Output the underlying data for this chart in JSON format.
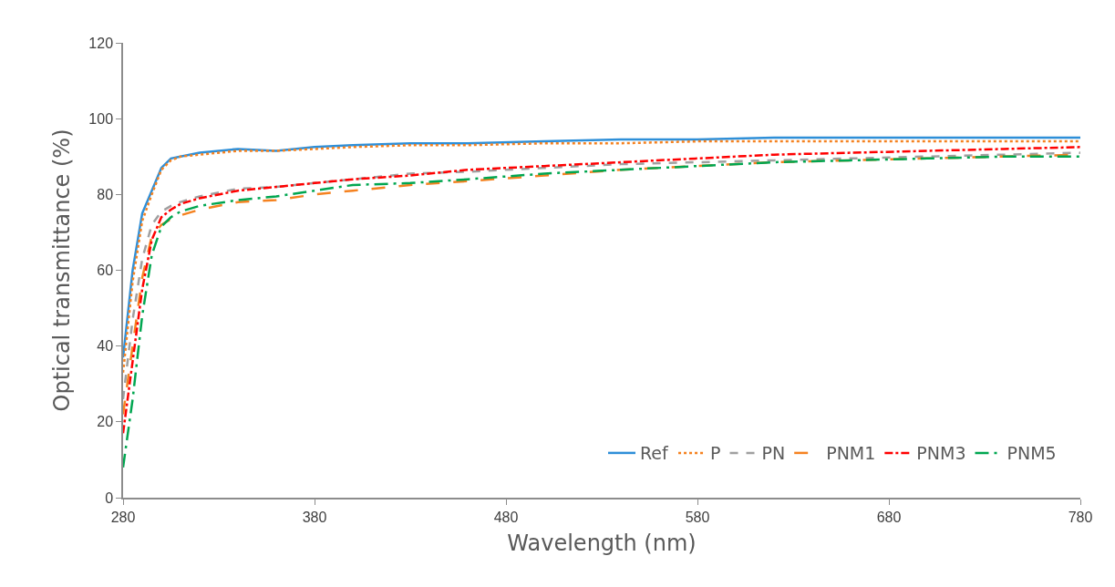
{
  "chart_data": {
    "type": "line",
    "xlabel": "Wavelength (nm)",
    "ylabel": "Optical transmittance (%)",
    "x": [
      280,
      285,
      290,
      295,
      300,
      305,
      310,
      320,
      340,
      360,
      380,
      400,
      430,
      460,
      500,
      540,
      580,
      620,
      660,
      700,
      740,
      780
    ],
    "xlim": [
      280,
      780
    ],
    "xticks": [
      280,
      380,
      480,
      580,
      680,
      780
    ],
    "ylim": [
      0,
      120
    ],
    "yticks": [
      0,
      20,
      40,
      60,
      80,
      100,
      120
    ],
    "grid": false,
    "legend": "bottom",
    "marker": "none",
    "series": [
      {
        "name": "Ref",
        "color": "#2e8fd8",
        "line_style": "solid",
        "values": [
          37,
          60,
          75,
          81,
          87,
          89.5,
          90,
          91,
          92,
          91.5,
          92.5,
          93,
          93.5,
          93.5,
          94,
          94.5,
          94.5,
          95,
          95,
          95,
          95,
          95
        ]
      },
      {
        "name": "P",
        "color": "#f58220",
        "line_style": "dotted",
        "values": [
          33,
          57,
          73,
          80,
          86.5,
          89,
          90,
          90.5,
          91.5,
          91.5,
          92,
          92.5,
          93,
          93,
          93.5,
          93.5,
          94,
          94,
          94,
          94,
          94,
          94
        ]
      },
      {
        "name": "PN",
        "color": "#a0a0a0",
        "line_style": "dashed",
        "values": [
          26,
          47,
          63,
          72,
          75.5,
          77,
          78,
          79.5,
          81.5,
          82,
          83,
          84,
          85.5,
          86,
          87,
          88,
          88.5,
          89,
          89.5,
          90,
          90.5,
          91
        ]
      },
      {
        "name": "PNM1",
        "color": "#f58220",
        "line_style": "longdash",
        "values": [
          22,
          40,
          58,
          69,
          72,
          73.5,
          74.5,
          76,
          78,
          78.5,
          80,
          81,
          82.5,
          83.5,
          85,
          86.5,
          87.5,
          88.5,
          89,
          89.5,
          90,
          90.5
        ]
      },
      {
        "name": "PNM3",
        "color": "#ff0000",
        "line_style": "dashdot",
        "values": [
          17,
          36,
          55,
          68,
          74,
          76,
          77.5,
          79,
          81,
          82,
          83,
          84,
          85,
          86.5,
          87.5,
          88.5,
          89.5,
          90.5,
          91,
          91.5,
          92,
          92.5
        ]
      },
      {
        "name": "PNM5",
        "color": "#00a650",
        "line_style": "longdashdot",
        "values": [
          8,
          26,
          48,
          64,
          71.5,
          74,
          75.5,
          77,
          78.5,
          79.5,
          81,
          82.5,
          83,
          84,
          85.5,
          86.5,
          87.5,
          88.5,
          89,
          89.5,
          90,
          90
        ]
      }
    ]
  }
}
